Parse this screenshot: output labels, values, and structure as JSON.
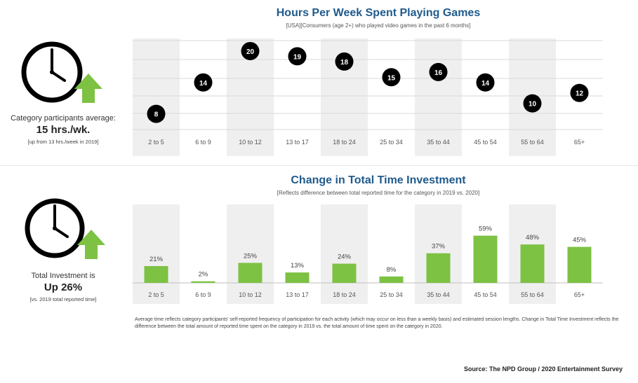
{
  "chart_data": [
    {
      "type": "scatter",
      "title": "Hours Per Week Spent Playing Games",
      "subtitle": "[USA][Consumers (age 2+) who played video games in the past 6 months]",
      "categories": [
        "2 to 5",
        "6 to 9",
        "10 to 12",
        "13 to 17",
        "18 to 24",
        "25 to 34",
        "35 to 44",
        "45 to 54",
        "55 to 64",
        "65+"
      ],
      "values": [
        8,
        14,
        20,
        19,
        18,
        15,
        16,
        14,
        10,
        12
      ],
      "ylim": [
        5,
        22
      ],
      "grid": true,
      "point_color": "#000000",
      "label_color": "#ffffff"
    },
    {
      "type": "bar",
      "title": "Change in Total Time Investment",
      "subtitle": "[Reflects difference between total reported time for the category in 2019 vs. 2020]",
      "categories": [
        "2 to 5",
        "6 to 9",
        "10 to 12",
        "13 to 17",
        "18 to 24",
        "25 to 34",
        "35 to 44",
        "45 to 54",
        "55 to 64",
        "65+"
      ],
      "values": [
        21,
        2,
        25,
        13,
        24,
        8,
        37,
        59,
        48,
        45
      ],
      "value_labels": [
        "21%",
        "2%",
        "25%",
        "13%",
        "24%",
        "8%",
        "37%",
        "59%",
        "48%",
        "45%"
      ],
      "ylim": [
        0,
        70
      ],
      "bar_color": "#7dc243"
    }
  ],
  "left_panels": {
    "top": {
      "label": "Category participants average:",
      "value": "15 hrs./wk.",
      "note": "[up from 13 hrs./week in 2019]"
    },
    "bottom": {
      "label": "Total Investment is",
      "value": "Up 26%",
      "note": "[vs. 2019 total reported time]"
    }
  },
  "footnote": "Average time reflects category participants' self-reported frequency of participation for each activity (which may occur on less than a weekly basis) and estimated session lengths. Change in Total Time Investment reflects the difference between the total amount of reported time spent on the category in 2019 vs. the total amount of time spent on the category in 2020.",
  "source": "Source: The NPD Group / 2020 Entertainment Survey",
  "colors": {
    "title": "#1f5a8c",
    "shade": "#efefef",
    "arrow": "#7dc243",
    "grid": "#d9d9d9"
  },
  "icons": [
    "clock-icon",
    "up-arrow-icon"
  ]
}
